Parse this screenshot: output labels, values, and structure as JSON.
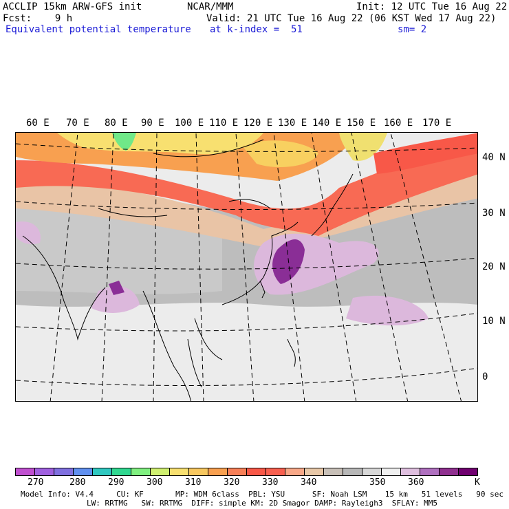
{
  "header": {
    "model": "ACCLIP 15km ARW-GFS init",
    "org": "NCAR/MMM",
    "init": "Init: 12 UTC Tue 16 Aug 22",
    "fcst": "Fcst:    9 h",
    "valid": "Valid: 21 UTC Tue 16 Aug 22 (06 KST Wed 17 Aug 22)",
    "field": "Equivalent potential temperature",
    "level": "at k-index =  51",
    "smooth": "sm= 2"
  },
  "map": {
    "lon_labels": [
      "60 E",
      "70 E",
      "80 E",
      "90 E",
      "100 E",
      "110 E",
      "120 E",
      "130 E",
      "140 E",
      "150 E",
      "160 E",
      "170 E"
    ],
    "lat_labels": [
      "40 N",
      "30 N",
      "20 N",
      "10 N",
      "0"
    ]
  },
  "colorbar": {
    "colors": [
      "#c050d0",
      "#a060e0",
      "#8070e0",
      "#6090f0",
      "#30c8c0",
      "#30d890",
      "#80f080",
      "#d0f070",
      "#f8e070",
      "#f8c860",
      "#f8a050",
      "#f88058",
      "#f85848",
      "#f86050",
      "#f8a888",
      "#e8c8a8",
      "#c8c0b8",
      "#b8b8b8",
      "#d8d8d8",
      "#f0f0f0",
      "#e0c0e0",
      "#b070c0",
      "#903090",
      "#700070"
    ],
    "labels": [
      "270",
      "280",
      "290",
      "300",
      "310",
      "320",
      "330",
      "340",
      "350",
      "360"
    ],
    "unit": "K"
  },
  "footer": {
    "line1": "Model Info: V4.4     CU: KF       MP: WDM 6class  PBL: YSU      SF: Noah LSM    15 km   51 levels   90 sec",
    "line2": "LW: RRTMG   SW: RRTMG  DIFF: simple KM: 2D Smagor DAMP: Rayleigh3  SFLAY: MM5"
  }
}
